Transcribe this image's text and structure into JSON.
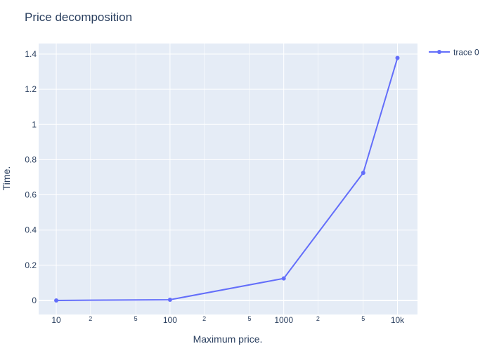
{
  "chart_data": {
    "type": "line",
    "title": "Price decomposition",
    "xlabel": "Maximum price.",
    "ylabel": "Time.",
    "x_scale": "log",
    "xlim": [
      7,
      15000
    ],
    "ylim": [
      -0.08,
      1.46
    ],
    "x_ticks": [
      {
        "value": 10,
        "label": "10",
        "major": true
      },
      {
        "value": 20,
        "label": "2",
        "major": false
      },
      {
        "value": 50,
        "label": "5",
        "major": false
      },
      {
        "value": 100,
        "label": "100",
        "major": true
      },
      {
        "value": 200,
        "label": "2",
        "major": false
      },
      {
        "value": 500,
        "label": "5",
        "major": false
      },
      {
        "value": 1000,
        "label": "1000",
        "major": true
      },
      {
        "value": 2000,
        "label": "2",
        "major": false
      },
      {
        "value": 5000,
        "label": "5",
        "major": false
      },
      {
        "value": 10000,
        "label": "10k",
        "major": true
      }
    ],
    "y_ticks": [
      {
        "value": 0,
        "label": "0"
      },
      {
        "value": 0.2,
        "label": "0.2"
      },
      {
        "value": 0.4,
        "label": "0.4"
      },
      {
        "value": 0.6,
        "label": "0.6"
      },
      {
        "value": 0.8,
        "label": "0.8"
      },
      {
        "value": 1,
        "label": "1"
      },
      {
        "value": 1.2,
        "label": "1.2"
      },
      {
        "value": 1.4,
        "label": "1.4"
      }
    ],
    "grid": true,
    "legend_position": "top-right",
    "colors": {
      "plot_background": "#E5ECF6",
      "grid": "#ffffff",
      "series": "#636efa",
      "text": "#2a3f5f"
    },
    "series": [
      {
        "name": "trace 0",
        "mode": "lines+markers",
        "x": [
          10,
          100,
          1000,
          5000,
          10000
        ],
        "y": [
          0.0,
          0.004,
          0.125,
          0.725,
          1.378
        ]
      }
    ]
  }
}
